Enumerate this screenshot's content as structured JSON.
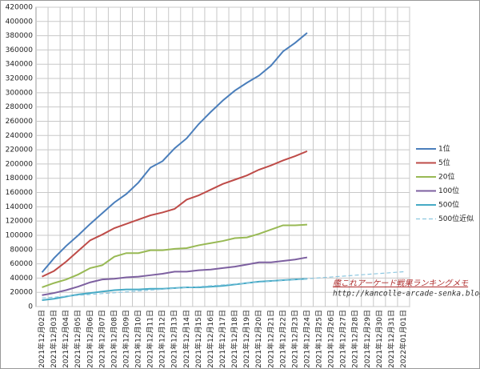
{
  "chart_data": {
    "type": "line",
    "categories": [
      "2021年12月02日",
      "2021年12月03日",
      "2021年12月04日",
      "2021年12月05日",
      "2021年12月06日",
      "2021年12月07日",
      "2021年12月08日",
      "2021年12月09日",
      "2021年12月10日",
      "2021年12月11日",
      "2021年12月12日",
      "2021年12月13日",
      "2021年12月14日",
      "2021年12月15日",
      "2021年12月16日",
      "2021年12月17日",
      "2021年12月18日",
      "2021年12月19日",
      "2021年12月20日",
      "2021年12月21日",
      "2021年12月22日",
      "2021年12月23日",
      "2021年12月24日",
      "2021年12月25日",
      "2021年12月26日",
      "2021年12月27日",
      "2021年12月28日",
      "2021年12月29日",
      "2021年12月30日",
      "2021年12月31日",
      "2022年01月01日"
    ],
    "series": [
      {
        "name": "1位",
        "color": "#4a7ebb",
        "values": [
          48000,
          68000,
          85000,
          100000,
          116000,
          131000,
          146000,
          158000,
          174000,
          195000,
          204000,
          222000,
          236000,
          256000,
          273000,
          289000,
          303000,
          314000,
          324000,
          338000,
          358000,
          370000,
          384000,
          null,
          null,
          null,
          null,
          null,
          null,
          null,
          null
        ]
      },
      {
        "name": "5位",
        "color": "#be4b48",
        "values": [
          42000,
          50000,
          63000,
          78000,
          93000,
          101000,
          110000,
          116000,
          122000,
          128000,
          132000,
          137000,
          150000,
          156000,
          164000,
          172000,
          178000,
          184000,
          192000,
          198000,
          205000,
          211000,
          218000,
          null,
          null,
          null,
          null,
          null,
          null,
          null,
          null
        ]
      },
      {
        "name": "20位",
        "color": "#98b954",
        "values": [
          27000,
          33000,
          38000,
          45000,
          54000,
          58000,
          70000,
          75000,
          75000,
          79000,
          79000,
          81000,
          82000,
          86000,
          89000,
          92000,
          96000,
          97000,
          102000,
          108000,
          114000,
          114000,
          115000,
          null,
          null,
          null,
          null,
          null,
          null,
          null,
          null
        ]
      },
      {
        "name": "100位",
        "color": "#7d60a0",
        "values": [
          16000,
          19000,
          23000,
          28000,
          34000,
          38000,
          39000,
          41000,
          42000,
          44000,
          46000,
          49000,
          49000,
          51000,
          52000,
          54000,
          56000,
          59000,
          62000,
          62000,
          64000,
          66000,
          69000,
          null,
          null,
          null,
          null,
          null,
          null,
          null,
          null
        ]
      },
      {
        "name": "500位",
        "color": "#46aac5",
        "values": [
          9000,
          11000,
          14000,
          17000,
          19000,
          21000,
          23000,
          24000,
          24000,
          25000,
          25000,
          26000,
          27000,
          27000,
          28000,
          29000,
          31000,
          33000,
          35000,
          36000,
          37000,
          38000,
          39000,
          null,
          null,
          null,
          null,
          null,
          null,
          null,
          null
        ]
      },
      {
        "name": "500位近似",
        "color": "#8cc7e0",
        "dashed": true,
        "values": [
          12000,
          13200,
          14500,
          15700,
          16900,
          18200,
          19400,
          20600,
          21800,
          23100,
          24300,
          25500,
          26800,
          28000,
          29200,
          30400,
          31700,
          32900,
          34100,
          35400,
          36600,
          37800,
          39000,
          40300,
          41500,
          42700,
          44000,
          45200,
          46400,
          47600,
          48900
        ]
      }
    ],
    "ylim": [
      0,
      420000
    ],
    "yticks": [
      0,
      20000,
      40000,
      60000,
      80000,
      100000,
      120000,
      140000,
      160000,
      180000,
      200000,
      220000,
      240000,
      260000,
      280000,
      300000,
      320000,
      340000,
      360000,
      380000,
      400000,
      420000
    ],
    "grid": true,
    "legend": "right",
    "annotations": [
      "艦これアーケード戦果ランキングメモ",
      "http://kancolle-arcade-senka.blog.jp/"
    ]
  }
}
